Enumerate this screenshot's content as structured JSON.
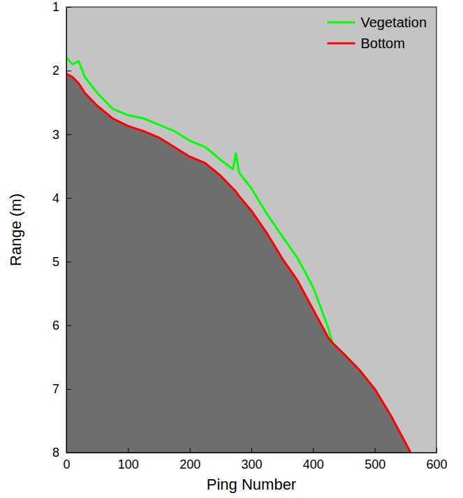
{
  "chart_data": {
    "type": "line",
    "x_label": "Ping Number",
    "y_label": "Range (m)",
    "x": [
      0,
      10,
      20,
      30,
      50,
      75,
      100,
      125,
      150,
      175,
      200,
      225,
      250,
      270,
      275,
      280,
      300,
      325,
      350,
      375,
      400,
      425,
      432,
      450,
      475,
      500,
      525,
      550,
      558
    ],
    "series": [
      {
        "name": "Vegetation",
        "color": "#00ff00",
        "values": [
          1.8,
          1.9,
          1.85,
          2.1,
          2.35,
          2.6,
          2.7,
          2.75,
          2.85,
          2.95,
          3.1,
          3.2,
          3.4,
          3.55,
          3.3,
          3.6,
          3.85,
          4.25,
          4.6,
          4.95,
          5.4,
          6.05,
          6.3,
          null,
          null,
          null,
          null,
          null,
          null
        ]
      },
      {
        "name": "Bottom",
        "color": "#ff0000",
        "values": [
          2.05,
          2.1,
          2.2,
          2.35,
          2.55,
          2.75,
          2.87,
          2.95,
          3.05,
          3.2,
          3.35,
          3.45,
          3.65,
          3.85,
          3.9,
          3.97,
          4.2,
          4.55,
          4.95,
          5.3,
          5.75,
          6.2,
          6.28,
          6.45,
          6.7,
          7.0,
          7.4,
          7.85,
          8.0
        ]
      }
    ],
    "xlim": [
      0,
      600
    ],
    "xticks": [
      0,
      100,
      200,
      300,
      400,
      500,
      600
    ],
    "ylim": [
      1,
      8
    ],
    "yticks": [
      1,
      2,
      3,
      4,
      5,
      6,
      7,
      8
    ],
    "legend": "upper right",
    "grid": false
  }
}
